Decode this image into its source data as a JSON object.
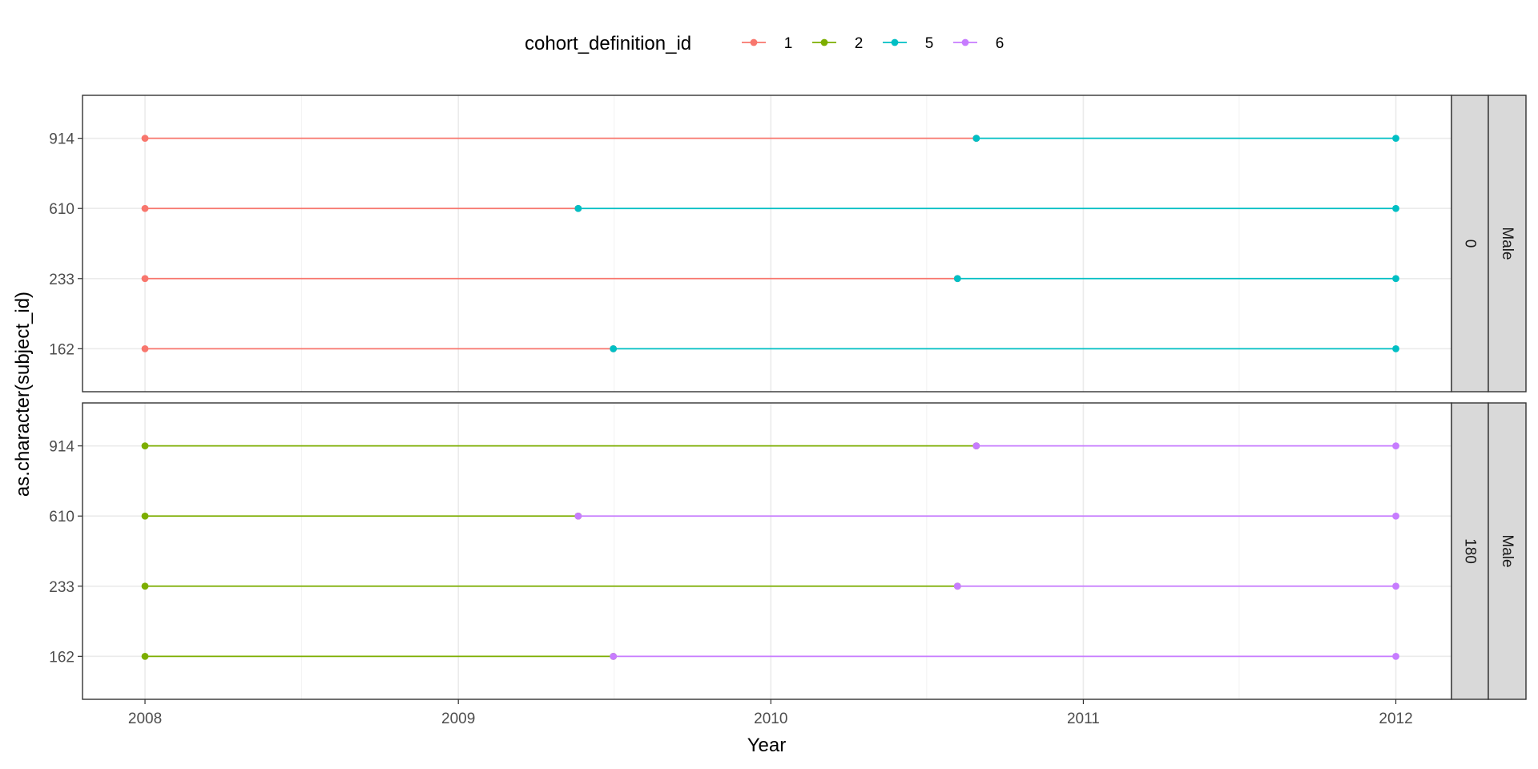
{
  "chart_data": {
    "type": "line",
    "xlabel": "Year",
    "ylabel": "as.character(subject_id)",
    "x_ticks": [
      "2008",
      "2009",
      "2010",
      "2011",
      "2012"
    ],
    "xlim": [
      "2007-10-20",
      "2012-03-06"
    ],
    "y_categories": [
      "162",
      "233",
      "610",
      "914"
    ],
    "grid": true,
    "legend": {
      "title": "cohort_definition_id",
      "position": "top",
      "entries": [
        {
          "label": "1",
          "color": "#F8766D"
        },
        {
          "label": "2",
          "color": "#7CAE00"
        },
        {
          "label": "5",
          "color": "#00BFC4"
        },
        {
          "label": "6",
          "color": "#C77CFF"
        }
      ]
    },
    "panels": [
      {
        "strips": [
          "0",
          "Male"
        ],
        "series": [
          {
            "subject_id": "914",
            "cohort": "1",
            "start": "2008-01-01",
            "end": "2010-08-29"
          },
          {
            "subject_id": "914",
            "cohort": "5",
            "start": "2010-08-29",
            "end": "2012-01-01"
          },
          {
            "subject_id": "610",
            "cohort": "1",
            "start": "2008-01-01",
            "end": "2009-05-21"
          },
          {
            "subject_id": "610",
            "cohort": "5",
            "start": "2009-05-21",
            "end": "2012-01-01"
          },
          {
            "subject_id": "233",
            "cohort": "1",
            "start": "2008-01-01",
            "end": "2010-08-07"
          },
          {
            "subject_id": "233",
            "cohort": "5",
            "start": "2010-08-07",
            "end": "2012-01-01"
          },
          {
            "subject_id": "162",
            "cohort": "1",
            "start": "2008-01-01",
            "end": "2009-07-01"
          },
          {
            "subject_id": "162",
            "cohort": "5",
            "start": "2009-07-01",
            "end": "2012-01-01"
          }
        ]
      },
      {
        "strips": [
          "180",
          "Male"
        ],
        "series": [
          {
            "subject_id": "914",
            "cohort": "2",
            "start": "2008-01-01",
            "end": "2010-08-29"
          },
          {
            "subject_id": "914",
            "cohort": "6",
            "start": "2010-08-29",
            "end": "2012-01-01"
          },
          {
            "subject_id": "610",
            "cohort": "2",
            "start": "2008-01-01",
            "end": "2009-05-21"
          },
          {
            "subject_id": "610",
            "cohort": "6",
            "start": "2009-05-21",
            "end": "2012-01-01"
          },
          {
            "subject_id": "233",
            "cohort": "2",
            "start": "2008-01-01",
            "end": "2010-08-07"
          },
          {
            "subject_id": "233",
            "cohort": "6",
            "start": "2010-08-07",
            "end": "2012-01-01"
          },
          {
            "subject_id": "162",
            "cohort": "2",
            "start": "2008-01-01",
            "end": "2009-07-01"
          },
          {
            "subject_id": "162",
            "cohort": "6",
            "start": "2009-07-01",
            "end": "2012-01-01"
          }
        ]
      }
    ]
  }
}
